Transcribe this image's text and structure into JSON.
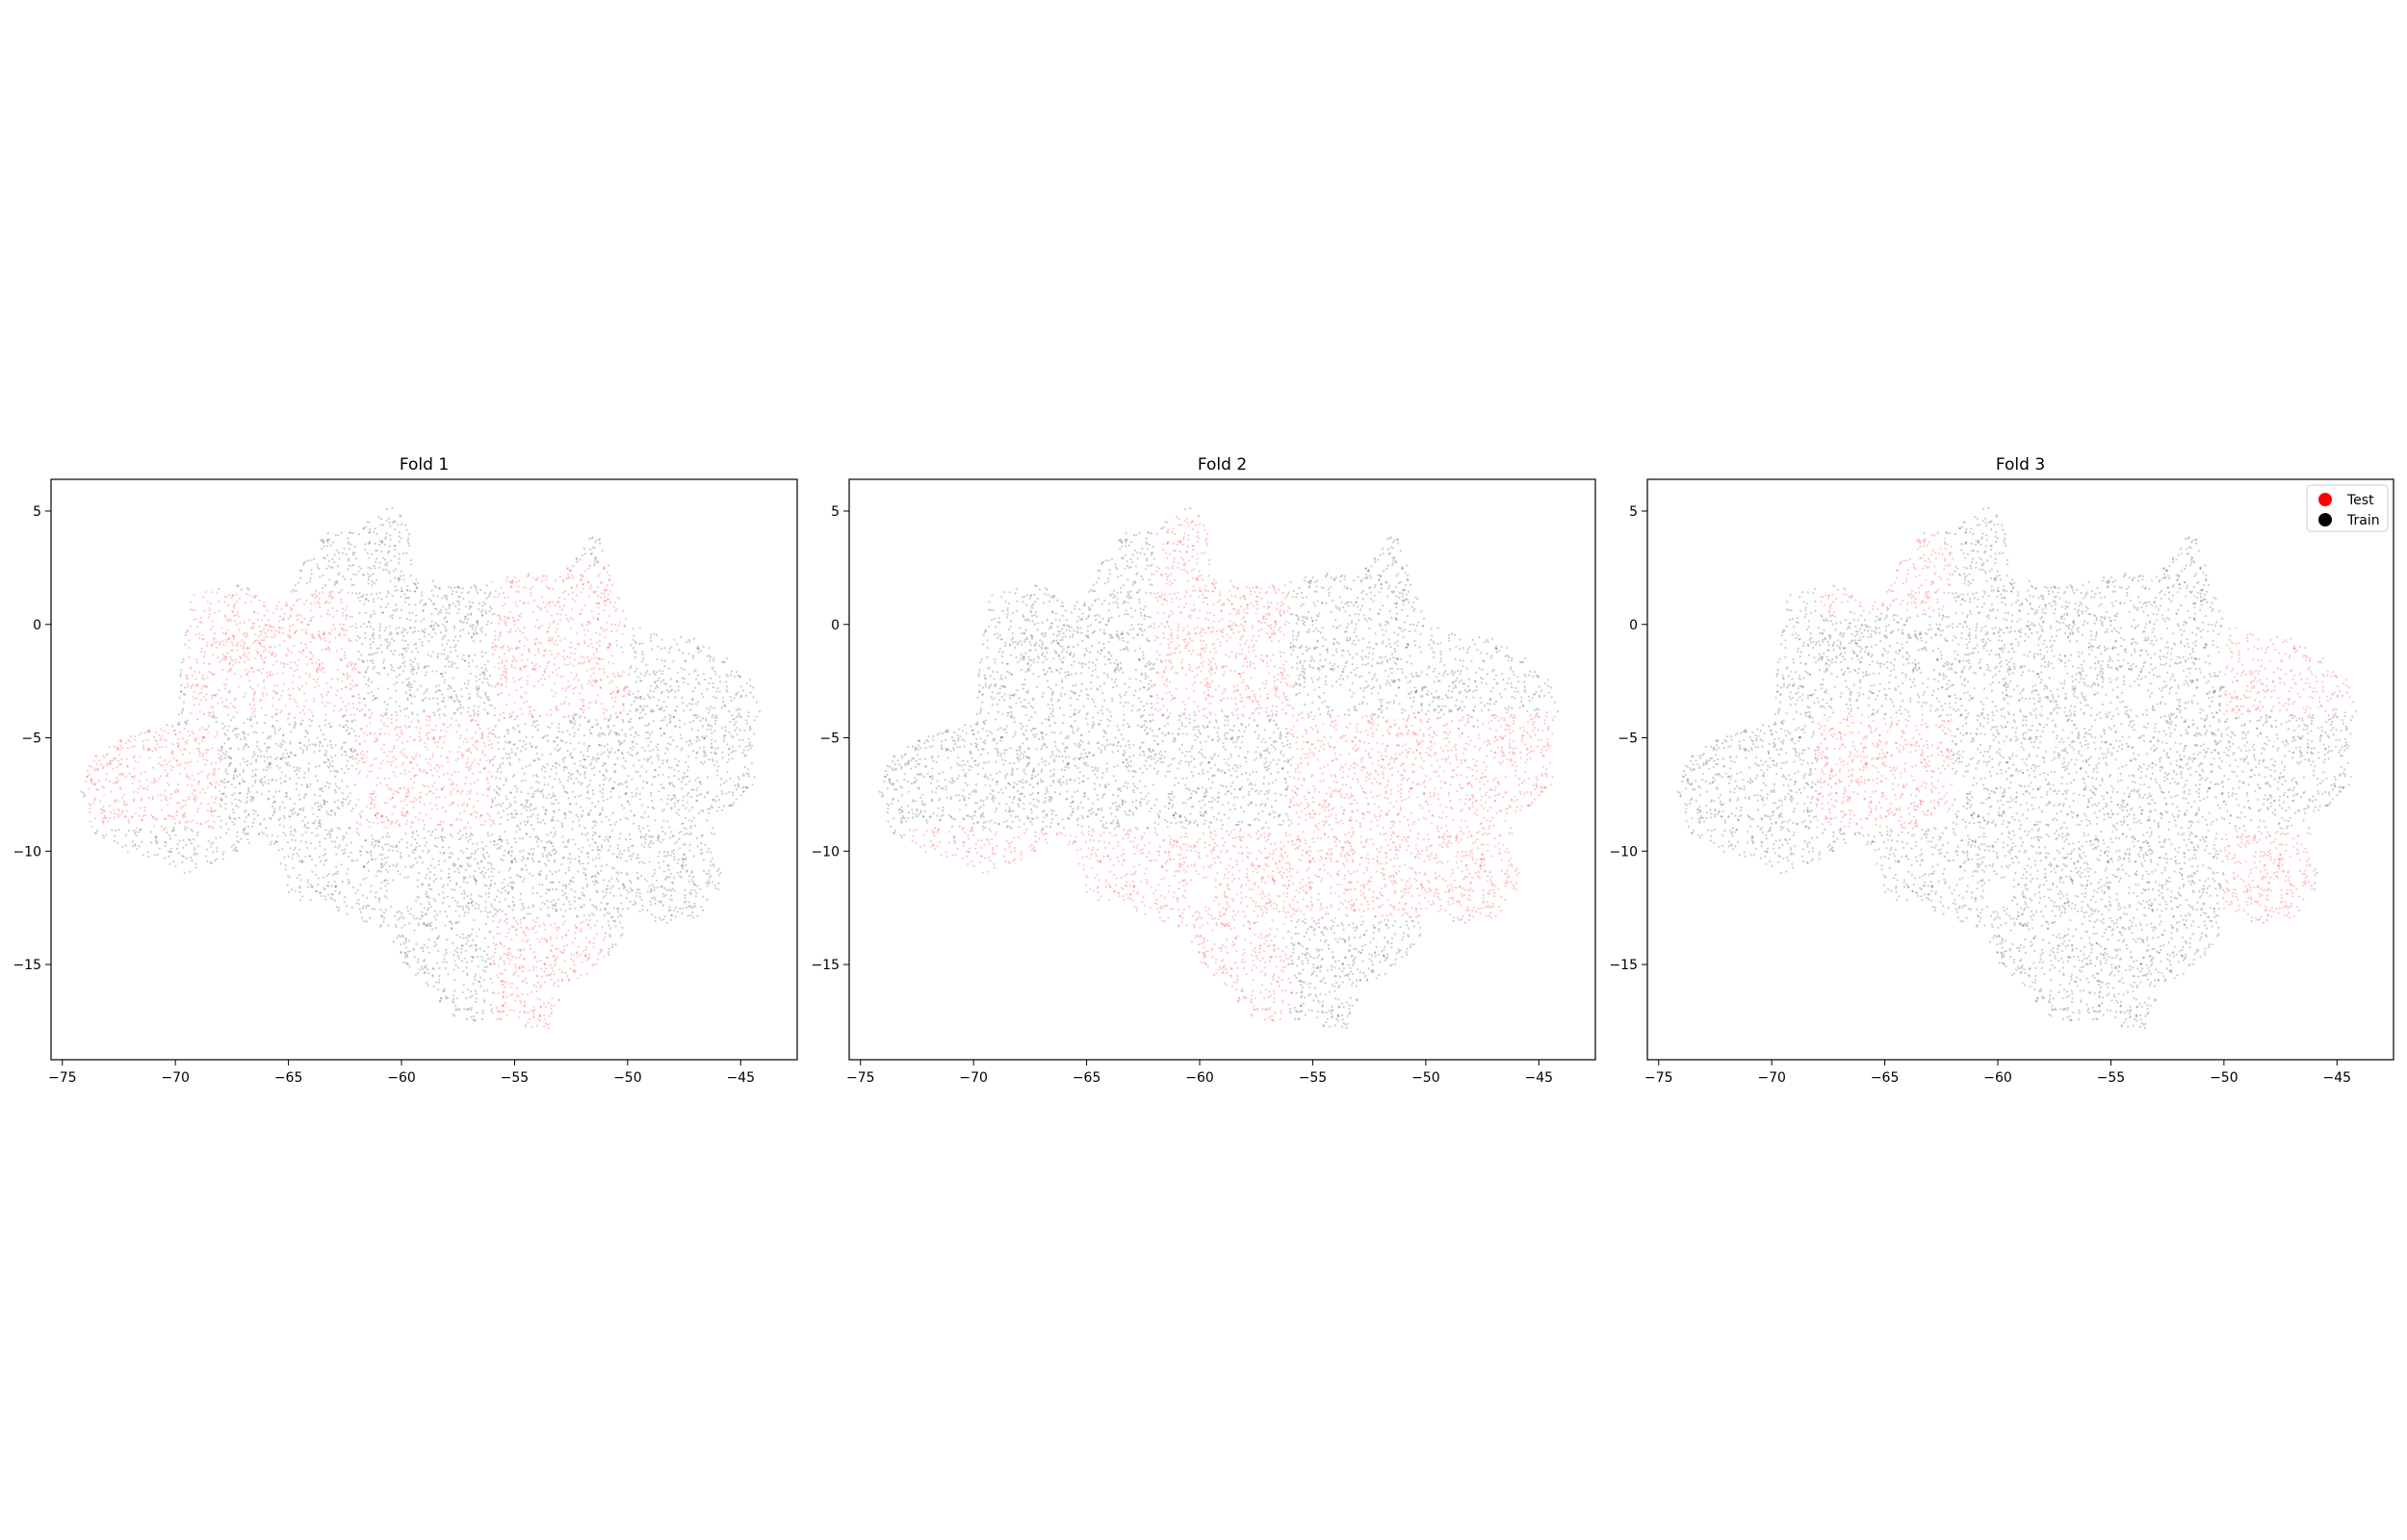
{
  "chart_data": [
    {
      "type": "scatter",
      "title": "Fold 1",
      "xlim": [
        -75.5,
        -42.5
      ],
      "ylim": [
        -19.2,
        6.4
      ],
      "xticks": [
        -75,
        -70,
        -65,
        -60,
        -55,
        -50,
        -45
      ],
      "yticks": [
        5,
        0,
        -5,
        -10,
        -15
      ],
      "grid": false,
      "series": [
        {
          "name": "Test",
          "color": "#ff0000",
          "regions": [
            [
              -69.5,
              -62,
              -4,
              1.5
            ],
            [
              -62,
              -56,
              -9,
              -4
            ],
            [
              -56,
              -50,
              -4,
              2.5
            ],
            [
              -74,
              -68,
              -9,
              -4.5
            ],
            [
              -56,
              -51,
              -18,
              -13
            ]
          ]
        },
        {
          "name": "Train",
          "color": "#000000",
          "regions": []
        }
      ]
    },
    {
      "type": "scatter",
      "title": "Fold 2",
      "xlim": [
        -75.5,
        -42.5
      ],
      "ylim": [
        -19.2,
        6.4
      ],
      "xticks": [
        -75,
        -70,
        -65,
        -60,
        -55,
        -50,
        -45
      ],
      "yticks": [
        5,
        0,
        -5,
        -10,
        -15
      ],
      "grid": false,
      "series": [
        {
          "name": "Test",
          "color": "#ff0000",
          "regions": [
            [
              -62,
              -56,
              -4,
              5
            ],
            [
              -56,
              -44,
              -13,
              -4
            ],
            [
              -73,
              -56,
              -13,
              -9
            ],
            [
              -62,
              -56,
              -18,
              -13
            ]
          ]
        },
        {
          "name": "Train",
          "color": "#000000",
          "regions": []
        }
      ]
    },
    {
      "type": "scatter",
      "title": "Fold 3",
      "xlim": [
        -75.5,
        -42.5
      ],
      "ylim": [
        -19.2,
        6.4
      ],
      "xticks": [
        -75,
        -70,
        -65,
        -60,
        -55,
        -50,
        -45
      ],
      "yticks": [
        5,
        0,
        -5,
        -10,
        -15
      ],
      "grid": false,
      "legend": "top-right",
      "series": [
        {
          "name": "Test",
          "color": "#ff0000",
          "regions": [
            [
              -68,
              -62,
              -9,
              -4
            ],
            [
              -50,
              -44,
              -4,
              0
            ],
            [
              -50,
              -46,
              -13,
              -9
            ],
            [
              -68,
              -62,
              0.5,
              4
            ]
          ]
        },
        {
          "name": "Train",
          "color": "#000000",
          "regions": []
        }
      ]
    }
  ]
}
